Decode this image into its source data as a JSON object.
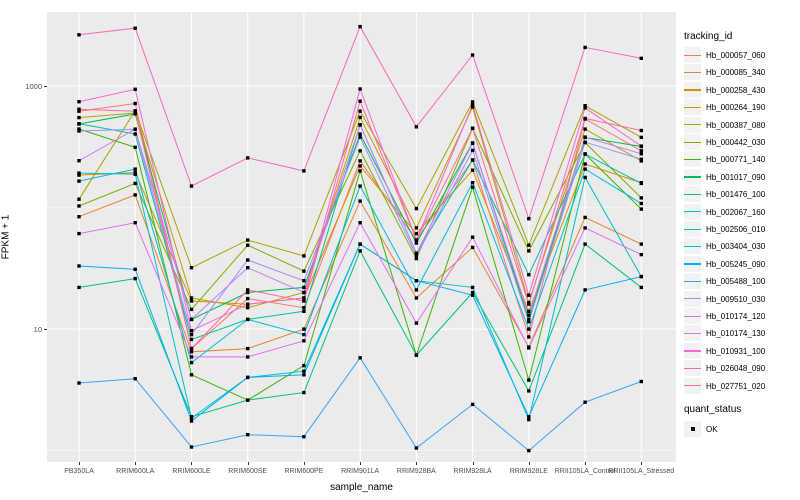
{
  "axes": {
    "y_title": "FPKM + 1",
    "x_title": "sample_name",
    "y_tick_labels": [
      "1000",
      "10"
    ]
  },
  "legend": {
    "tracking_title": "tracking_id",
    "quant_title": "quant_status",
    "quant_label": "OK"
  },
  "colors": {
    "panel_bg": "#EBEBEB",
    "grid_major": "#FFFFFF",
    "grid_minor": "#FFFFFF",
    "point": "#000000",
    "tick_label": "#4D4D4D",
    "axis_title": "#000000",
    "legend_key_bg": "#F2F2F2"
  },
  "chart_data": {
    "type": "line",
    "title": "",
    "xlabel": "sample_name",
    "ylabel": "FPKM + 1",
    "y_scale": "log10",
    "y_major_ticks": [
      10,
      1000
    ],
    "y_minor_ticks": [
      1,
      100
    ],
    "ylim_log10": [
      -0.094,
      3.609
    ],
    "grid": true,
    "legend_position": "right",
    "point_shape": "filled-square-black",
    "quant_status_values": [
      "OK"
    ],
    "x_categories": [
      "PB350LA",
      "RRIM600LA",
      "RRIM600LE",
      "RRIM600SE",
      "RRIM600PE",
      "RRIM901LA",
      "RRIM928BA",
      "RRIM928LA",
      "RRIM928LE",
      "RRII105LA_Control",
      "RRII105LA_Stressed"
    ],
    "series": [
      {
        "name": "Hb_000057_060",
        "color": "#F8766D",
        "values": [
          620,
          718,
          6.9,
          17.8,
          15,
          242,
          54,
          246,
          8.6,
          535,
          293
        ]
      },
      {
        "name": "Hb_000085_340",
        "color": "#EA8331",
        "values": [
          84,
          127,
          6.5,
          6.9,
          10,
          113,
          18,
          47,
          7.1,
          83,
          50
        ]
      },
      {
        "name": "Hb_000258_430",
        "color": "#D89000",
        "values": [
          185,
          194,
          17,
          16,
          18,
          220,
          61,
          203,
          14,
          228,
          160
        ]
      },
      {
        "name": "Hb_000264_190",
        "color": "#C09B00",
        "values": [
          550,
          600,
          18,
          15,
          20,
          552,
          68,
          670,
          16.5,
          442,
          242
        ]
      },
      {
        "name": "Hb_000387_080",
        "color": "#A3A500",
        "values": [
          117,
          625,
          32,
          54,
          40,
          620,
          98,
          740,
          49,
          688,
          378
        ]
      },
      {
        "name": "Hb_000442_030",
        "color": "#7CAE00",
        "values": [
          103,
          158,
          14.5,
          49,
          30,
          293,
          38,
          448,
          44,
          342,
          120
        ]
      },
      {
        "name": "Hb_000771_140",
        "color": "#39B600",
        "values": [
          443,
          313,
          4.2,
          2.6,
          5,
          200,
          6.1,
          147,
          3.8,
          276,
          97
        ]
      },
      {
        "name": "Hb_001017_090",
        "color": "#00BB4E",
        "values": [
          487,
          590,
          12,
          20,
          22,
          402,
          51,
          340,
          12,
          378,
          318
        ]
      },
      {
        "name": "Hb_001476_100",
        "color": "#00BF7D",
        "values": [
          22,
          26,
          1.9,
          2.6,
          3,
          44,
          6.1,
          20,
          3.1,
          50,
          22
        ]
      },
      {
        "name": "Hb_002067_160",
        "color": "#00C1A3",
        "values": [
          490,
          403,
          8.2,
          12,
          14,
          480,
          42,
          246,
          28,
          276,
          158
        ]
      },
      {
        "name": "Hb_002506_010",
        "color": "#00BFC4",
        "values": [
          192,
          188,
          1.85,
          4,
          4.5,
          50,
          25,
          22,
          1.8,
          177,
          27
        ]
      },
      {
        "name": "Hb_003404_030",
        "color": "#00BAE0",
        "values": [
          165,
          207,
          5.3,
          12,
          9,
          150,
          21,
          160,
          10,
          207,
          108
        ]
      },
      {
        "name": "Hb_005245_090",
        "color": "#00B0F6",
        "values": [
          33,
          31,
          1.75,
          4,
          4.2,
          50,
          25,
          19,
          1.9,
          21,
          27
        ]
      },
      {
        "name": "Hb_005488_100",
        "color": "#35A2FF",
        "values": [
          3.6,
          3.9,
          1.07,
          1.35,
          1.3,
          5.8,
          1.05,
          2.4,
          1.0,
          2.5,
          3.7
        ]
      },
      {
        "name": "Hb_009510_030",
        "color": "#9590FF",
        "values": [
          426,
          440,
          9,
          37,
          25,
          380,
          40,
          295,
          11.5,
          345,
          250
        ]
      },
      {
        "name": "Hb_010174_120",
        "color": "#C77CFF",
        "values": [
          243,
          442,
          12,
          32,
          20,
          478,
          42,
          338,
          13,
          380,
          277
        ]
      },
      {
        "name": "Hb_010174_130",
        "color": "#E76BF3",
        "values": [
          61,
          75,
          5.9,
          5.9,
          8,
          75,
          11.2,
          57,
          7,
          68,
          41
        ]
      },
      {
        "name": "Hb_010931_100",
        "color": "#FA62DB",
        "values": [
          743,
          940,
          9.7,
          16,
          18,
          945,
          54,
          700,
          19,
          660,
          320
        ]
      },
      {
        "name": "Hb_026048_090",
        "color": "#FF62BC",
        "values": [
          2640,
          2990,
          150,
          256,
          200,
          3080,
          462,
          1800,
          81,
          2080,
          1690
        ]
      },
      {
        "name": "Hb_027751_020",
        "color": "#FF6A98",
        "values": [
          645,
          620,
          6.9,
          21,
          17,
          750,
          54,
          450,
          16,
          540,
          430
        ]
      }
    ]
  }
}
